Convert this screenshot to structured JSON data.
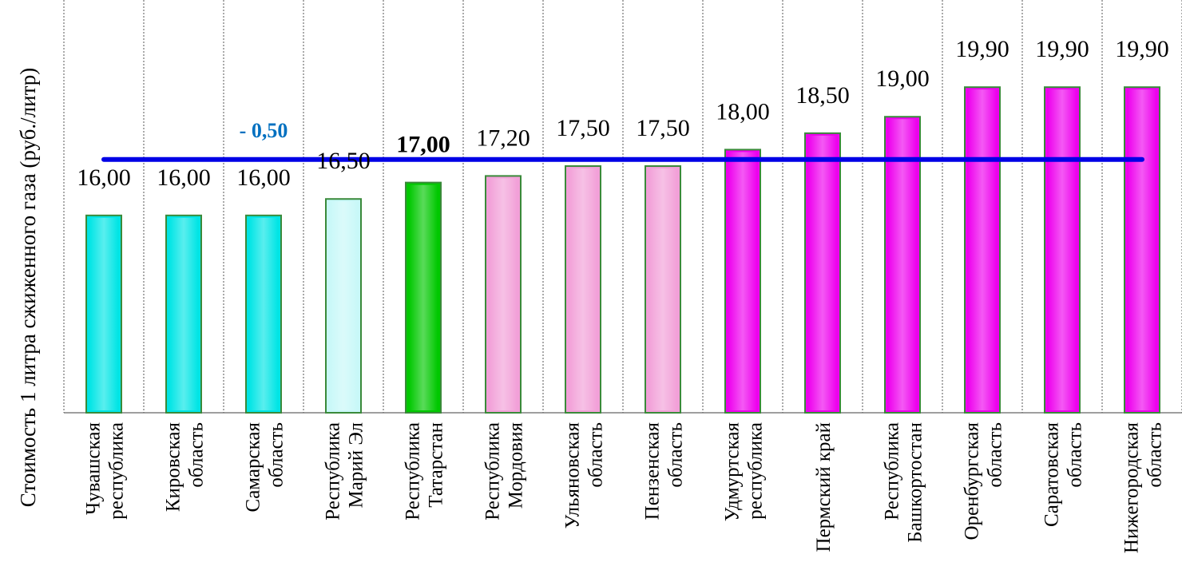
{
  "chart_data": {
    "type": "bar",
    "ylabel": "Стоимость 1 литра сжиженного газа  (руб./литр)",
    "categories": [
      [
        "Чувашская",
        "республика"
      ],
      [
        "Кировская",
        "область"
      ],
      [
        "Самарская",
        "область"
      ],
      [
        "Республика",
        "Марий Эл"
      ],
      [
        "Республика",
        "Татарстан"
      ],
      [
        "Республика",
        "Мордовия"
      ],
      [
        "Ульяновская",
        "область"
      ],
      [
        "Пензенская",
        "область"
      ],
      [
        "Удмуртская",
        "республика"
      ],
      [
        "Пермский край"
      ],
      [
        "Республика",
        "Башкортостан"
      ],
      [
        "Оренбургская",
        "область"
      ],
      [
        "Саратовская",
        "область"
      ],
      [
        "Нижегородская",
        "область"
      ]
    ],
    "values": [
      16.0,
      16.0,
      16.0,
      16.5,
      17.0,
      17.2,
      17.5,
      17.5,
      18.0,
      18.5,
      19.0,
      19.9,
      19.9,
      19.9
    ],
    "value_labels": [
      "16,00",
      "16,00",
      "16,00",
      "16,50",
      "17,00",
      "17,20",
      "17,50",
      "17,50",
      "18,00",
      "18,50",
      "19,00",
      "19,90",
      "19,90",
      "19,90"
    ],
    "highlight_index": 4,
    "bar_colors": [
      "#00e5e5",
      "#00e5e5",
      "#00e5e5",
      "#c8f8f8",
      "#00c800",
      "#f2a0d8",
      "#f2a0d8",
      "#f2a0d8",
      "#ee00ee",
      "#ee00ee",
      "#ee00ee",
      "#ee00ee",
      "#ee00ee",
      "#ee00ee"
    ],
    "average_line": {
      "value": 17.7,
      "color": "#0000e6"
    },
    "annotation": {
      "text": "- 0,50",
      "category_index": 2,
      "color": "#0070c0"
    },
    "ylim": [
      10,
      22.55
    ],
    "grid": "vertical-dotted"
  }
}
